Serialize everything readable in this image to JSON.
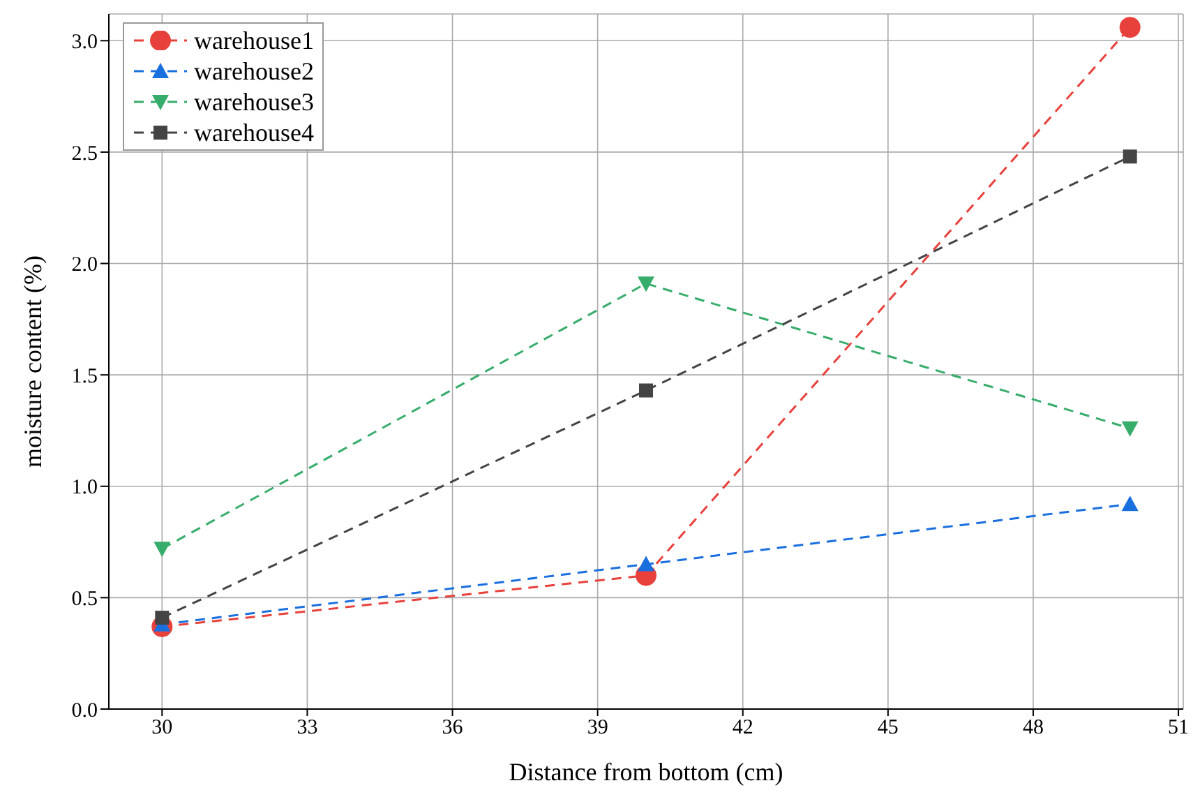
{
  "chart_data": {
    "type": "line",
    "xlabel": "Distance from bottom (cm)",
    "ylabel": "moisture content (%)",
    "x": [
      30,
      40,
      50
    ],
    "series": [
      {
        "name": "warehouse1",
        "color": "#e8413c",
        "values": [
          0.37,
          0.6,
          3.06
        ],
        "marker": "circle"
      },
      {
        "name": "warehouse2",
        "color": "#1a6fdf",
        "values": [
          0.38,
          0.65,
          0.92
        ],
        "marker": "triangle"
      },
      {
        "name": "warehouse3",
        "color": "#37ad6b",
        "values": [
          0.72,
          1.91,
          1.26
        ],
        "marker": "triangle-down"
      },
      {
        "name": "warehouse4",
        "color": "#444444",
        "values": [
          0.41,
          1.43,
          2.48
        ],
        "marker": "square"
      }
    ],
    "xlim": [
      28.9,
      51.1
    ],
    "xticks": [
      30,
      33,
      36,
      39,
      42,
      45,
      48,
      51
    ],
    "ylim": [
      0,
      3.12
    ],
    "yticks": [
      {
        "value": 0,
        "label": "0.0"
      },
      0.5,
      {
        "value": 1,
        "label": "1.0"
      },
      1.5,
      {
        "value": 2,
        "label": "2.0"
      },
      2.5,
      {
        "value": 3,
        "label": "3.0"
      }
    ],
    "grid": true,
    "legend": "top left",
    "line_style": "dashed"
  }
}
